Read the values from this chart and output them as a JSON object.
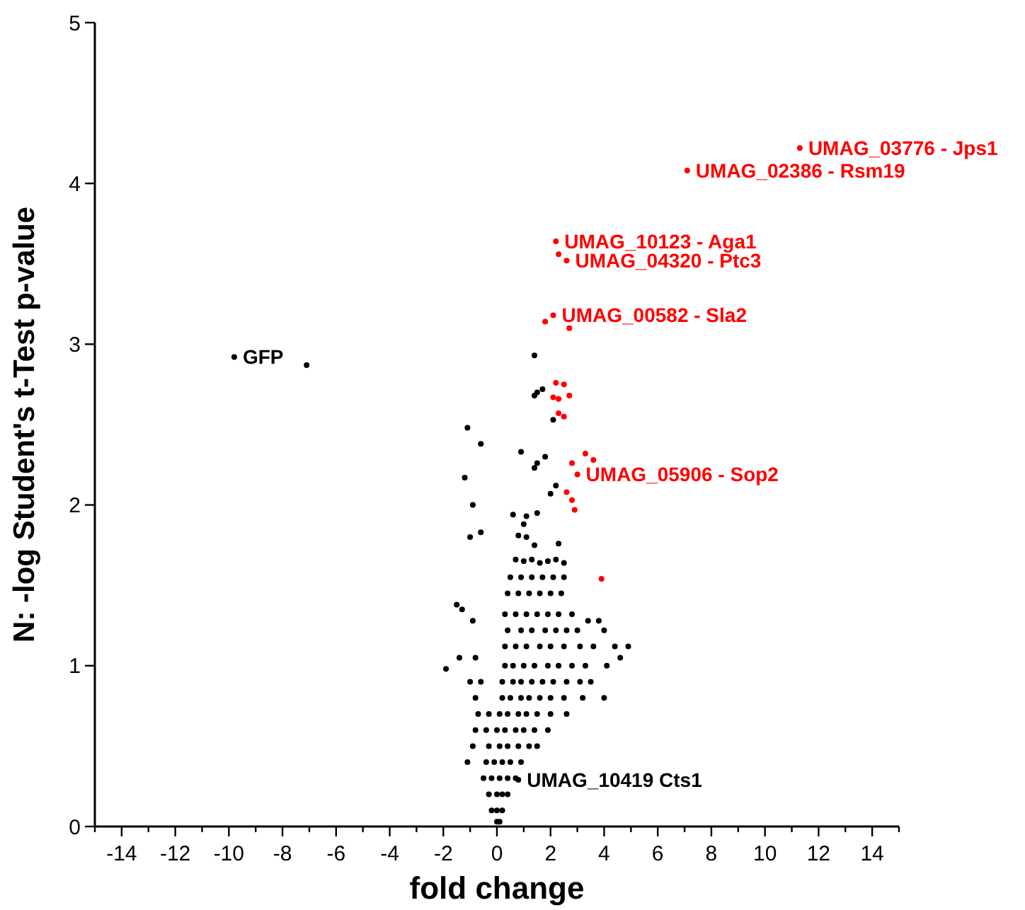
{
  "chart_data": {
    "type": "scatter",
    "xlabel": "fold change",
    "ylabel": "N: -log Student's t-Test p-value",
    "xlim": [
      -15,
      15
    ],
    "ylim": [
      0,
      5
    ],
    "xticks": [
      {
        "value": -15,
        "label": null
      },
      -14,
      {
        "value": -13,
        "label": null
      },
      -12,
      {
        "value": -11,
        "label": null
      },
      -10,
      {
        "value": -9,
        "label": null
      },
      -8,
      {
        "value": -7,
        "label": null
      },
      -6,
      {
        "value": -5,
        "label": null
      },
      -4,
      {
        "value": -3,
        "label": null
      },
      -2,
      {
        "value": -1,
        "label": null
      },
      0,
      {
        "value": 1,
        "label": null
      },
      2,
      {
        "value": 3,
        "label": null
      },
      4,
      {
        "value": 5,
        "label": null
      },
      6,
      {
        "value": 7,
        "label": null
      },
      8,
      {
        "value": 9,
        "label": null
      },
      10,
      {
        "value": 11,
        "label": null
      },
      12,
      {
        "value": 13,
        "label": null
      },
      14,
      {
        "value": 15,
        "label": null
      }
    ],
    "yticks": [
      0,
      1,
      2,
      3,
      4,
      5
    ],
    "grid": false,
    "marker": "circle",
    "series": [
      {
        "color": "#000000",
        "x": [
          1.4,
          1.5,
          1.7,
          1.4,
          2.1,
          -1.1,
          -0.6,
          0.9,
          1.5,
          1.8,
          1.4,
          -1.2,
          2.2,
          2.0,
          -0.9,
          0.6,
          1.1,
          1.5,
          1.0,
          -0.6,
          -1.0,
          0.8,
          1.1,
          2.3,
          1.4,
          0.7,
          1.0,
          1.3,
          1.6,
          1.9,
          2.2,
          2.5,
          0.5,
          0.9,
          1.3,
          1.7,
          2.1,
          2.5,
          0.4,
          0.8,
          1.2,
          1.6,
          2.0,
          2.4,
          -1.5,
          -1.3,
          0.3,
          0.7,
          1.1,
          1.5,
          1.9,
          2.3,
          2.8,
          3.4,
          3.8,
          -0.9,
          0.4,
          0.9,
          1.3,
          1.8,
          2.2,
          2.6,
          3.0,
          4.0,
          0.3,
          0.7,
          1.1,
          1.6,
          2.0,
          2.5,
          3.1,
          3.6,
          4.4,
          4.9,
          -1.4,
          -0.8,
          4.6,
          0.3,
          0.6,
          1.0,
          1.4,
          1.9,
          2.3,
          2.8,
          3.3,
          4.1,
          -1.9,
          0.2,
          0.6,
          0.9,
          1.3,
          1.7,
          2.1,
          2.6,
          3.1,
          3.5,
          -1.0,
          -0.6,
          0.2,
          0.5,
          0.9,
          1.2,
          1.6,
          2.0,
          2.5,
          3.2,
          4.0,
          -0.8,
          0.1,
          0.4,
          0.8,
          1.1,
          1.5,
          2.0,
          2.6,
          -0.7,
          -0.3,
          0.0,
          0.3,
          0.7,
          1.0,
          1.4,
          1.9,
          -0.8,
          -0.4,
          -0.3,
          0.1,
          0.4,
          0.8,
          1.2,
          1.5,
          -0.9,
          -0.4,
          -0.1,
          0.2,
          0.5,
          0.9,
          -1.1,
          -0.5,
          -0.2,
          0.1,
          0.4,
          0.7,
          -0.3,
          0.0,
          0.2,
          0.4,
          -0.2,
          0.0,
          0.2,
          0.0,
          0.1,
          0.8,
          -9.8,
          -7.1
        ],
        "values": [
          2.93,
          2.7,
          2.72,
          2.68,
          2.53,
          2.48,
          2.38,
          2.33,
          2.26,
          2.3,
          2.23,
          2.17,
          2.12,
          2.07,
          2.0,
          1.94,
          1.93,
          1.95,
          1.88,
          1.83,
          1.8,
          1.81,
          1.8,
          1.76,
          1.75,
          1.66,
          1.65,
          1.66,
          1.64,
          1.65,
          1.66,
          1.64,
          1.55,
          1.55,
          1.55,
          1.55,
          1.55,
          1.55,
          1.45,
          1.45,
          1.45,
          1.45,
          1.45,
          1.45,
          1.38,
          1.35,
          1.32,
          1.32,
          1.32,
          1.32,
          1.32,
          1.32,
          1.32,
          1.28,
          1.28,
          1.28,
          1.22,
          1.22,
          1.22,
          1.22,
          1.22,
          1.22,
          1.22,
          1.22,
          1.12,
          1.12,
          1.12,
          1.12,
          1.12,
          1.12,
          1.12,
          1.12,
          1.12,
          1.12,
          1.05,
          1.05,
          1.05,
          1.0,
          1.0,
          1.0,
          1.0,
          1.0,
          1.0,
          1.0,
          1.0,
          1.0,
          0.98,
          0.9,
          0.9,
          0.9,
          0.9,
          0.9,
          0.9,
          0.9,
          0.9,
          0.9,
          0.9,
          0.9,
          0.8,
          0.8,
          0.8,
          0.8,
          0.8,
          0.8,
          0.8,
          0.8,
          0.8,
          0.8,
          0.7,
          0.7,
          0.7,
          0.7,
          0.7,
          0.7,
          0.7,
          0.7,
          0.7,
          0.6,
          0.6,
          0.6,
          0.6,
          0.6,
          0.6,
          0.6,
          0.6,
          0.5,
          0.5,
          0.5,
          0.5,
          0.5,
          0.5,
          0.5,
          0.4,
          0.4,
          0.4,
          0.4,
          0.4,
          0.4,
          0.3,
          0.3,
          0.3,
          0.3,
          0.3,
          0.2,
          0.2,
          0.2,
          0.2,
          0.1,
          0.1,
          0.1,
          0.03,
          0.03,
          0.29,
          2.92,
          2.87
        ]
      },
      {
        "color": "#ff0000",
        "x": [
          11.3,
          7.1,
          2.2,
          2.3,
          2.6,
          1.8,
          2.1,
          2.7,
          2.2,
          2.5,
          2.1,
          2.3,
          2.7,
          2.3,
          2.5,
          3.3,
          3.6,
          2.8,
          3.0,
          2.6,
          2.8,
          2.9,
          3.9
        ],
        "values": [
          4.22,
          4.08,
          3.64,
          3.56,
          3.52,
          3.14,
          3.18,
          3.1,
          2.76,
          2.75,
          2.67,
          2.66,
          2.68,
          2.57,
          2.55,
          2.32,
          2.28,
          2.26,
          2.19,
          2.08,
          2.03,
          1.97,
          1.54
        ]
      }
    ],
    "annotations": [
      {
        "text": "UMAG_03776 - Jps1",
        "x": 11.3,
        "y": 4.22
      },
      {
        "text": "UMAG_02386 - Rsm19",
        "x": 7.1,
        "y": 4.08
      },
      {
        "text": "UMAG_10123 - Aga1",
        "x": 2.2,
        "y": 3.64
      },
      {
        "text": "UMAG_04320 - Ptc3",
        "x": 2.6,
        "y": 3.52
      },
      {
        "text": "UMAG_00582 - Sla2",
        "x": 2.1,
        "y": 3.18
      },
      {
        "text": "UMAG_05906 - Sop2",
        "x": 3.0,
        "y": 2.19
      },
      {
        "text": "GFP",
        "x": -9.8,
        "y": 2.92
      },
      {
        "text": "UMAG_10419 Cts1",
        "x": 0.8,
        "y": 0.29
      }
    ]
  }
}
